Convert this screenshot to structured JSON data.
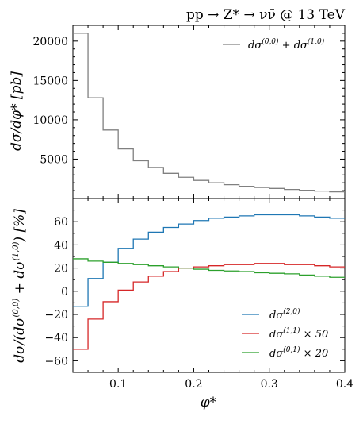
{
  "chart_data": [
    {
      "type": "line",
      "step": true,
      "title": "pp → Z* → νν̄ @ 13 TeV",
      "xlabel": "",
      "ylabel": "dσ/dφ* [pb]",
      "xlim": [
        0.04,
        0.4
      ],
      "ylim": [
        0,
        22000
      ],
      "yticks": [
        5000,
        10000,
        15000,
        20000
      ],
      "ytick_labels": [
        "5000",
        "10000",
        "15000",
        "20000"
      ],
      "legend_position": "top-right",
      "bin_edges": [
        0.04,
        0.06,
        0.08,
        0.1,
        0.12,
        0.14,
        0.16,
        0.18,
        0.2,
        0.22,
        0.24,
        0.26,
        0.28,
        0.3,
        0.32,
        0.34,
        0.36,
        0.38,
        0.4
      ],
      "series": [
        {
          "name": "dσ(0,0) + dσ(1,0)",
          "label_main": "dσ",
          "label_sup": "(0,0)",
          "label_mid": " + dσ",
          "label_sup2": "(1,0)",
          "color": "#808080",
          "values": [
            21000,
            12800,
            8700,
            6300,
            4800,
            3950,
            3200,
            2700,
            2300,
            2000,
            1750,
            1550,
            1400,
            1280,
            1150,
            1050,
            950,
            850
          ]
        }
      ]
    },
    {
      "type": "line",
      "step": true,
      "xlabel": "φ*",
      "ylabel": "dσ/(dσ(0,0) + dσ(1,0)) [%]",
      "ylabel_parts": {
        "a": "dσ/(dσ",
        "sup1": "(0,0)",
        "b": " + dσ",
        "sup2": "(1,0)",
        "c": ")  [%]"
      },
      "xlim": [
        0.04,
        0.4
      ],
      "ylim": [
        -70,
        80
      ],
      "xticks": [
        0.1,
        0.2,
        0.3,
        0.4
      ],
      "xtick_labels": [
        "0.1",
        "0.2",
        "0.3",
        "0.4"
      ],
      "yticks": [
        -60,
        -40,
        -20,
        0,
        20,
        40,
        60
      ],
      "ytick_labels": [
        "−60",
        "−40",
        "−20",
        "0",
        "20",
        "40",
        "60"
      ],
      "legend_position": "bottom-right",
      "bin_edges": [
        0.04,
        0.06,
        0.08,
        0.1,
        0.12,
        0.14,
        0.16,
        0.18,
        0.2,
        0.22,
        0.24,
        0.26,
        0.28,
        0.3,
        0.32,
        0.34,
        0.36,
        0.38,
        0.4
      ],
      "series": [
        {
          "name": "dσ(2,0)",
          "label_main": "dσ",
          "label_sup": "(2,0)",
          "label_tail": "",
          "color": "#1f77b4",
          "values": [
            -13,
            11,
            25,
            37,
            45,
            51,
            55,
            58,
            61,
            63,
            64,
            65,
            66,
            66,
            66,
            65,
            64,
            63
          ]
        },
        {
          "name": "dσ(1,1) × 50",
          "label_main": "dσ",
          "label_sup": "(1,1)",
          "label_tail": " × 50",
          "color": "#d62728",
          "values": [
            -50,
            -24,
            -9,
            1,
            8,
            13,
            17,
            20,
            21,
            22,
            23,
            23,
            24,
            24,
            23,
            23,
            22,
            21
          ]
        },
        {
          "name": "dσ(0,1) × 20",
          "label_main": "dσ",
          "label_sup": "(0,1)",
          "label_tail": " × 20",
          "color": "#2ca02c",
          "values": [
            28,
            26,
            25,
            24,
            23,
            22,
            21,
            20,
            19,
            18,
            17.5,
            17,
            16,
            15.5,
            15,
            14,
            13,
            12
          ]
        }
      ]
    }
  ]
}
